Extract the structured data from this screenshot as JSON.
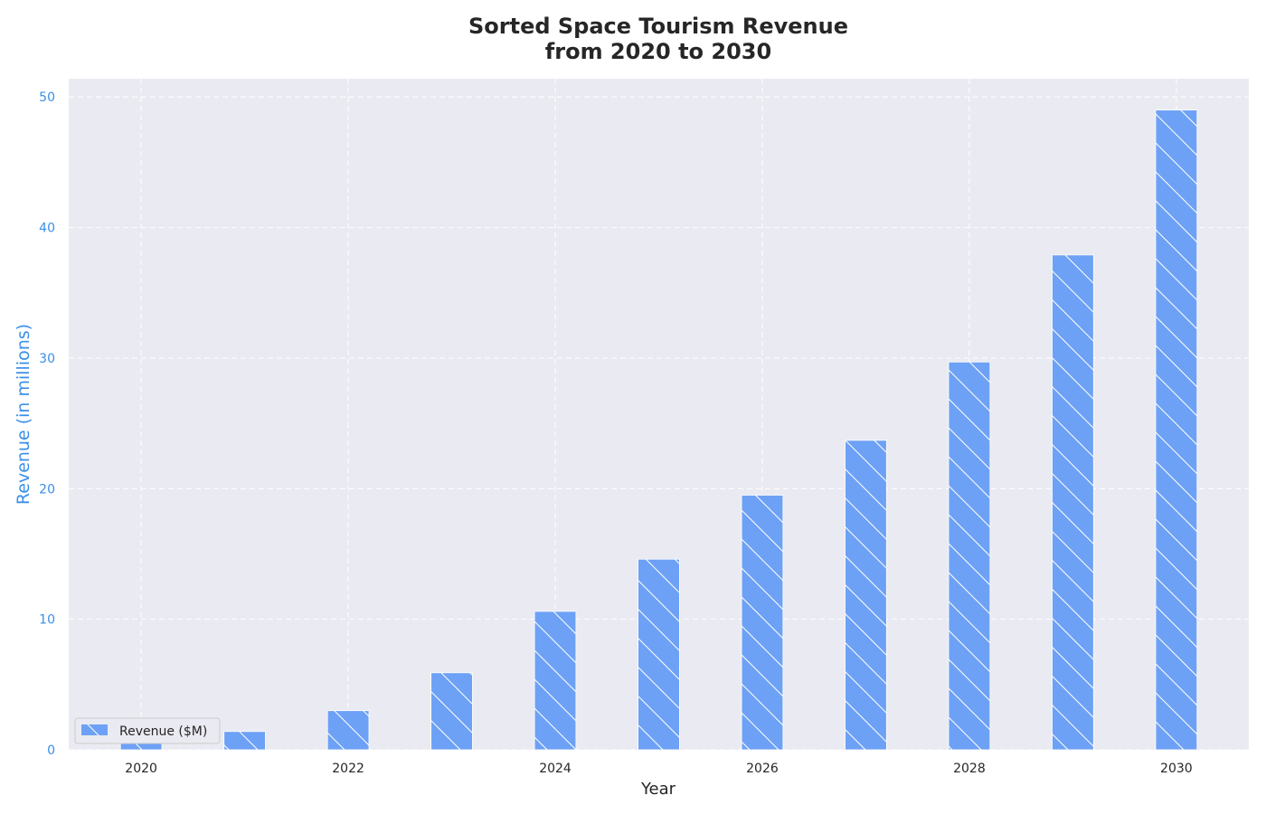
{
  "chart_data": {
    "type": "bar",
    "title_lines": [
      "Sorted Space Tourism Revenue",
      "from 2020 to 2030"
    ],
    "xlabel": "Year",
    "ylabel": "Revenue (in millions)",
    "x": [
      2020,
      2021,
      2022,
      2023,
      2024,
      2025,
      2026,
      2027,
      2028,
      2029,
      2030
    ],
    "series": [
      {
        "name": "Revenue ($M)",
        "values": [
          0.5,
          1.4,
          3.0,
          5.9,
          10.6,
          14.6,
          19.5,
          23.7,
          29.7,
          37.9,
          49.0
        ]
      }
    ],
    "x_ticks": [
      2020,
      2022,
      2024,
      2026,
      2028,
      2030
    ],
    "y_ticks": [
      0,
      10,
      20,
      30,
      40,
      50
    ],
    "xlim": [
      2019.3,
      2030.7
    ],
    "ylim": [
      0,
      51.4
    ],
    "bar_color": "#6da1f5",
    "hatch": "\\",
    "plot_background": "#eaeaf2",
    "grid": true,
    "legend": {
      "entries": [
        "Revenue ($M)"
      ],
      "placement": "lower-left"
    }
  }
}
